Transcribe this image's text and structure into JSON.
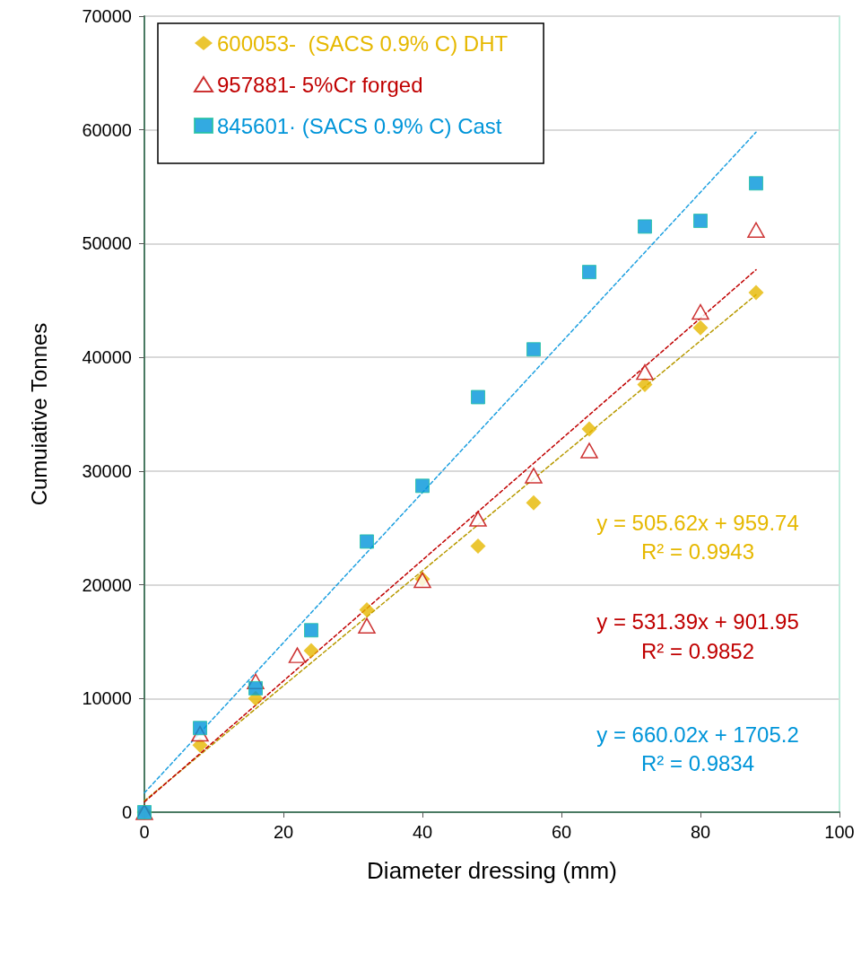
{
  "chart_data": {
    "type": "scatter",
    "xlabel": "Diameter dressing (mm)",
    "ylabel": "Cumuiative Tonnes",
    "xlim": [
      0,
      100
    ],
    "xticks": [
      0,
      20,
      40,
      60,
      80,
      100
    ],
    "ylim": [
      0,
      70000
    ],
    "yticks": [
      0,
      10000,
      20000,
      30000,
      40000,
      50000,
      60000,
      70000
    ],
    "grid": "y",
    "legend": "top left",
    "series": [
      {
        "name": "600053-  (SACS 0.9% C) DHT",
        "color": "#e6b800",
        "marker": "diamond",
        "x": [
          0,
          8,
          16,
          24,
          32,
          40,
          48,
          56,
          64,
          72,
          80,
          88
        ],
        "values": [
          0,
          5900,
          10000,
          14200,
          17800,
          20500,
          23400,
          27200,
          33700,
          37600,
          42600,
          45700
        ]
      },
      {
        "name": "957881- 5%Cr forged",
        "color": "#c00000",
        "marker": "triangle",
        "x": [
          0,
          8,
          16,
          22,
          32,
          40,
          48,
          56,
          64,
          72,
          80,
          88
        ],
        "values": [
          0,
          6900,
          11500,
          13800,
          16400,
          20400,
          25800,
          29600,
          31800,
          38700,
          44000,
          51200
        ]
      },
      {
        "name": "845601· (SACS 0.9% C) Cast",
        "color": "#0095d9",
        "marker": "square",
        "x": [
          0,
          8,
          16,
          24,
          32,
          40,
          48,
          56,
          64,
          72,
          80,
          88
        ],
        "values": [
          0,
          7400,
          10900,
          16000,
          23800,
          28700,
          36500,
          40700,
          47500,
          51500,
          52000,
          55300
        ]
      },
      {
        "type": "line",
        "color": "#b89a00",
        "line_style": "dashed",
        "marker": "none",
        "x": [
          0,
          88
        ],
        "values": [
          1000,
          45500
        ]
      },
      {
        "type": "line",
        "color": "#c00000",
        "line_style": "dashed",
        "marker": "none",
        "x": [
          0,
          88
        ],
        "values": [
          900,
          47700
        ]
      },
      {
        "type": "line",
        "color": "#1ea0e0",
        "line_style": "dashed",
        "marker": "none",
        "x": [
          0,
          88
        ],
        "values": [
          1700,
          59800
        ]
      }
    ],
    "annotations": [
      "y = 505.62x + 959.74",
      "R² = 0.9943",
      "y = 531.39x + 901.95",
      "R² = 0.9852",
      "y = 660.02x + 1705.2",
      "R² = 0.9834"
    ]
  }
}
